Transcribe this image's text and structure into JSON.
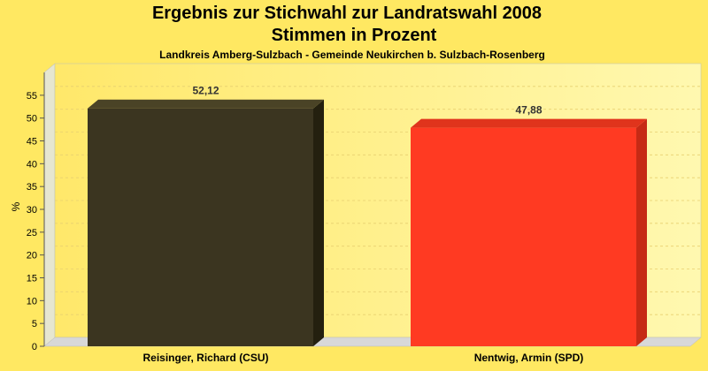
{
  "chart_data": {
    "type": "bar",
    "title": "Ergebnis zur Stichwahl zur Landratswahl 2008",
    "title_line2": "Stimmen in Prozent",
    "subtitle": "Landkreis Amberg-Sulzbach - Gemeinde Neukirchen b. Sulzbach-Rosenberg",
    "ylabel": "%",
    "xlabel": "",
    "ylim": [
      0,
      60
    ],
    "yticks": [
      0,
      5,
      10,
      15,
      20,
      25,
      30,
      35,
      40,
      45,
      50,
      55
    ],
    "grid": true,
    "categories": [
      "Reisinger, Richard (CSU)",
      "Nentwig, Armin (SPD)"
    ],
    "values": [
      52.12,
      47.88
    ],
    "value_labels": [
      "52,12",
      "47,88"
    ],
    "colors": [
      "#3b3520",
      "#ff3a22"
    ],
    "side_colors": [
      "#24200f",
      "#c62a15"
    ],
    "top_colors": [
      "#4a4326",
      "#e0341c"
    ],
    "plot_colors": {
      "background": "#ffe862",
      "plot_gradient_left": "#ffe86a",
      "plot_gradient_right": "#fff8b0",
      "wall": "#e6e6d0",
      "floor": "#d8d8d8",
      "grid": "#e8d070"
    }
  }
}
